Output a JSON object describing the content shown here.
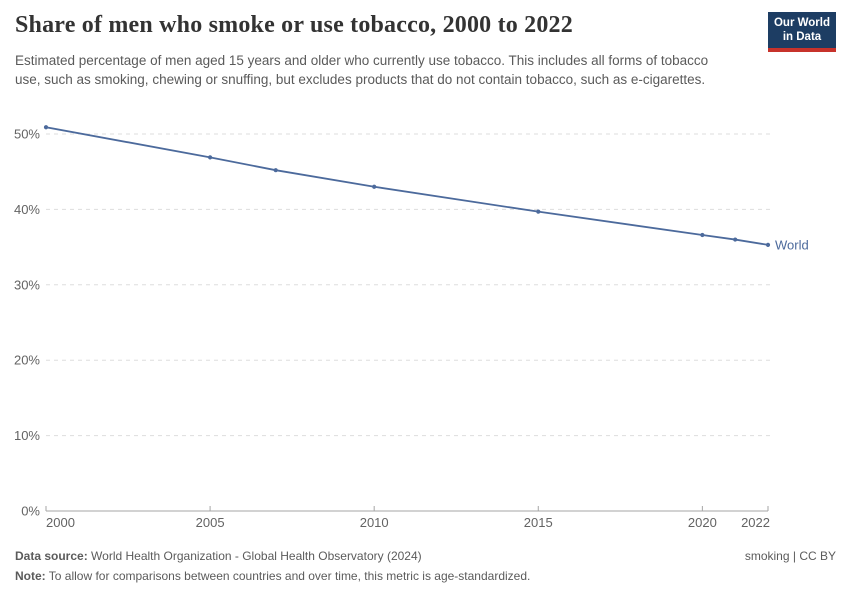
{
  "header": {
    "title": "Share of men who smoke or use tobacco, 2000 to 2022",
    "subtitle": "Estimated percentage of men aged 15 years and older who currently use tobacco. This includes all forms of tobacco use, such as smoking, chewing or snuffing, but excludes products that do not contain tobacco, such as e-cigarettes.",
    "logo": {
      "line1": "Our World",
      "line2": "in Data",
      "bg_color": "#1d3d63",
      "stripe_color": "#c7322b"
    }
  },
  "chart_data": {
    "type": "line",
    "title": "Share of men who smoke or use tobacco, 2000 to 2022",
    "xlabel": "",
    "ylabel": "",
    "xlim": [
      2000,
      2022
    ],
    "ylim": [
      0,
      52
    ],
    "x_ticks": [
      2000,
      2005,
      2010,
      2015,
      2020,
      2022
    ],
    "y_ticks": [
      0,
      10,
      20,
      30,
      40,
      50
    ],
    "y_tick_suffix": "%",
    "grid": "horizontal-dashed",
    "legend_position": "end-of-line-label",
    "grid_color": "#dddddd",
    "axis_color": "#a5a5a5",
    "tick_label_color": "#636363",
    "series": [
      {
        "name": "World",
        "color": "#4C6A9C",
        "x": [
          2000,
          2005,
          2007,
          2010,
          2015,
          2020,
          2021,
          2022
        ],
        "values": [
          50.9,
          46.9,
          45.2,
          43.0,
          39.7,
          36.6,
          36.0,
          35.3
        ]
      }
    ]
  },
  "footer": {
    "source_label": "Data source:",
    "source_text": " World Health Organization - Global Health Observatory (2024)",
    "note_label": "Note:",
    "note_text": " To allow for comparisons between countries and over time, this metric is age-standardized.",
    "license_text": "smoking | CC BY"
  }
}
